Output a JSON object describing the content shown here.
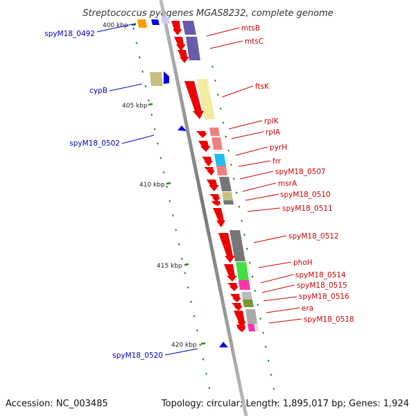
{
  "title": "Streptococcus pyogenes MGAS8232, complete genome",
  "footer": {
    "accession": "Accession: NC_003485",
    "summary": "Topology: circular; Length: 1,895,017 bp; Genes: 1,924"
  },
  "kbp_labels": [
    "400 kbp",
    "405 kbp",
    "410 kbp",
    "415 kbp",
    "420 kbp"
  ],
  "genes_right": [
    "mtsB",
    "mtsC",
    "ftsK",
    "rplK",
    "rplA",
    "pyrH",
    "frr",
    "spyM18_0507",
    "msrA",
    "spyM18_0510",
    "spyM18_0511",
    "spyM18_0512",
    "phoH",
    "spyM18_0514",
    "spyM18_0515",
    "spyM18_0516",
    "era",
    "spyM18_0518"
  ],
  "genes_left": [
    "spyM18_0492",
    "cypB",
    "spyM18_0502",
    "spyM18_0520"
  ],
  "colors": {
    "forward_gene": "#ee0000",
    "reverse_gene": "#0000ee",
    "label_right": "#cc0000",
    "label_left": "#0000cc",
    "tick": "#228822",
    "backbone": "#999999"
  }
}
